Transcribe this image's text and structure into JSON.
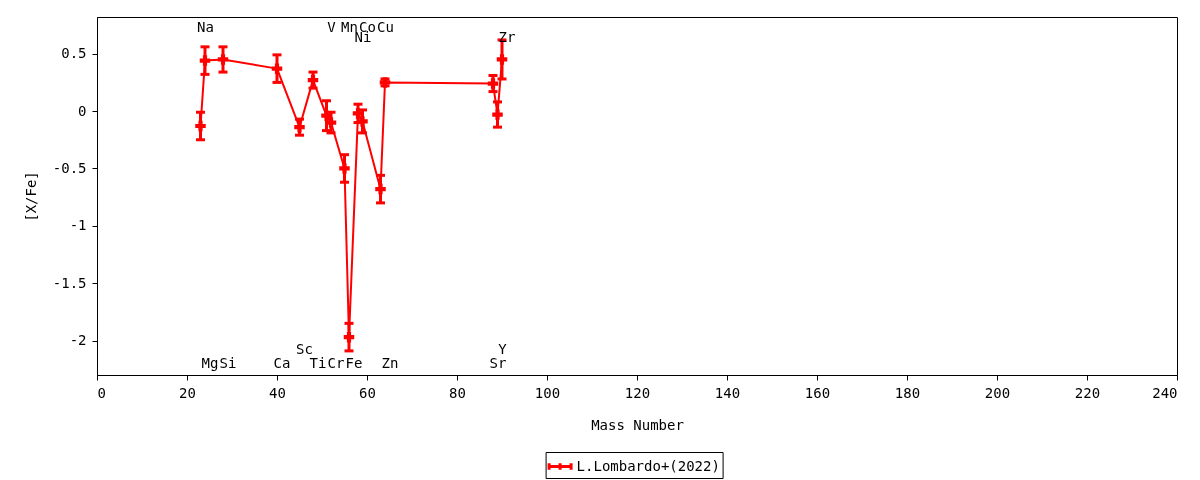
{
  "chart_data": {
    "type": "line",
    "xlabel": "Mass Number",
    "ylabel": "[X/Fe]",
    "x": [
      23,
      24,
      28,
      40,
      45,
      48,
      51,
      52,
      55,
      56,
      58,
      59,
      63,
      64,
      88,
      89,
      90
    ],
    "series": [
      {
        "name": "L.Lombardo+(2022)",
        "color": "#ff0000",
        "values": [
          -0.13,
          0.44,
          0.45,
          0.37,
          -0.14,
          0.27,
          -0.04,
          -0.1,
          -0.5,
          -1.97,
          -0.02,
          -0.09,
          -0.68,
          0.25,
          0.24,
          -0.03,
          0.45
        ],
        "errors": [
          0.12,
          0.12,
          0.11,
          0.12,
          0.07,
          0.07,
          0.13,
          0.09,
          0.12,
          0.12,
          0.08,
          0.1,
          0.12,
          0.03,
          0.07,
          0.11,
          0.17
        ]
      }
    ],
    "xlim": [
      0,
      240
    ],
    "xticks": [
      0,
      20,
      40,
      60,
      80,
      100,
      120,
      140,
      160,
      180,
      200,
      220,
      240
    ],
    "ylim": [
      -2.3,
      0.82
    ],
    "yticks": [
      0.5,
      0,
      -0.5,
      -1,
      -1.5,
      -2
    ],
    "legend": "bottom",
    "marker": "cross",
    "line_style": "solid",
    "grid": false,
    "annotations": [
      "Na",
      "Mg",
      "Si",
      "Ca",
      "Sc",
      "Ti",
      "V",
      "Cr",
      "Mn",
      "Fe",
      "Ni",
      "Co",
      "Cu",
      "Zn",
      "Sr",
      "Y",
      "Zr"
    ]
  }
}
